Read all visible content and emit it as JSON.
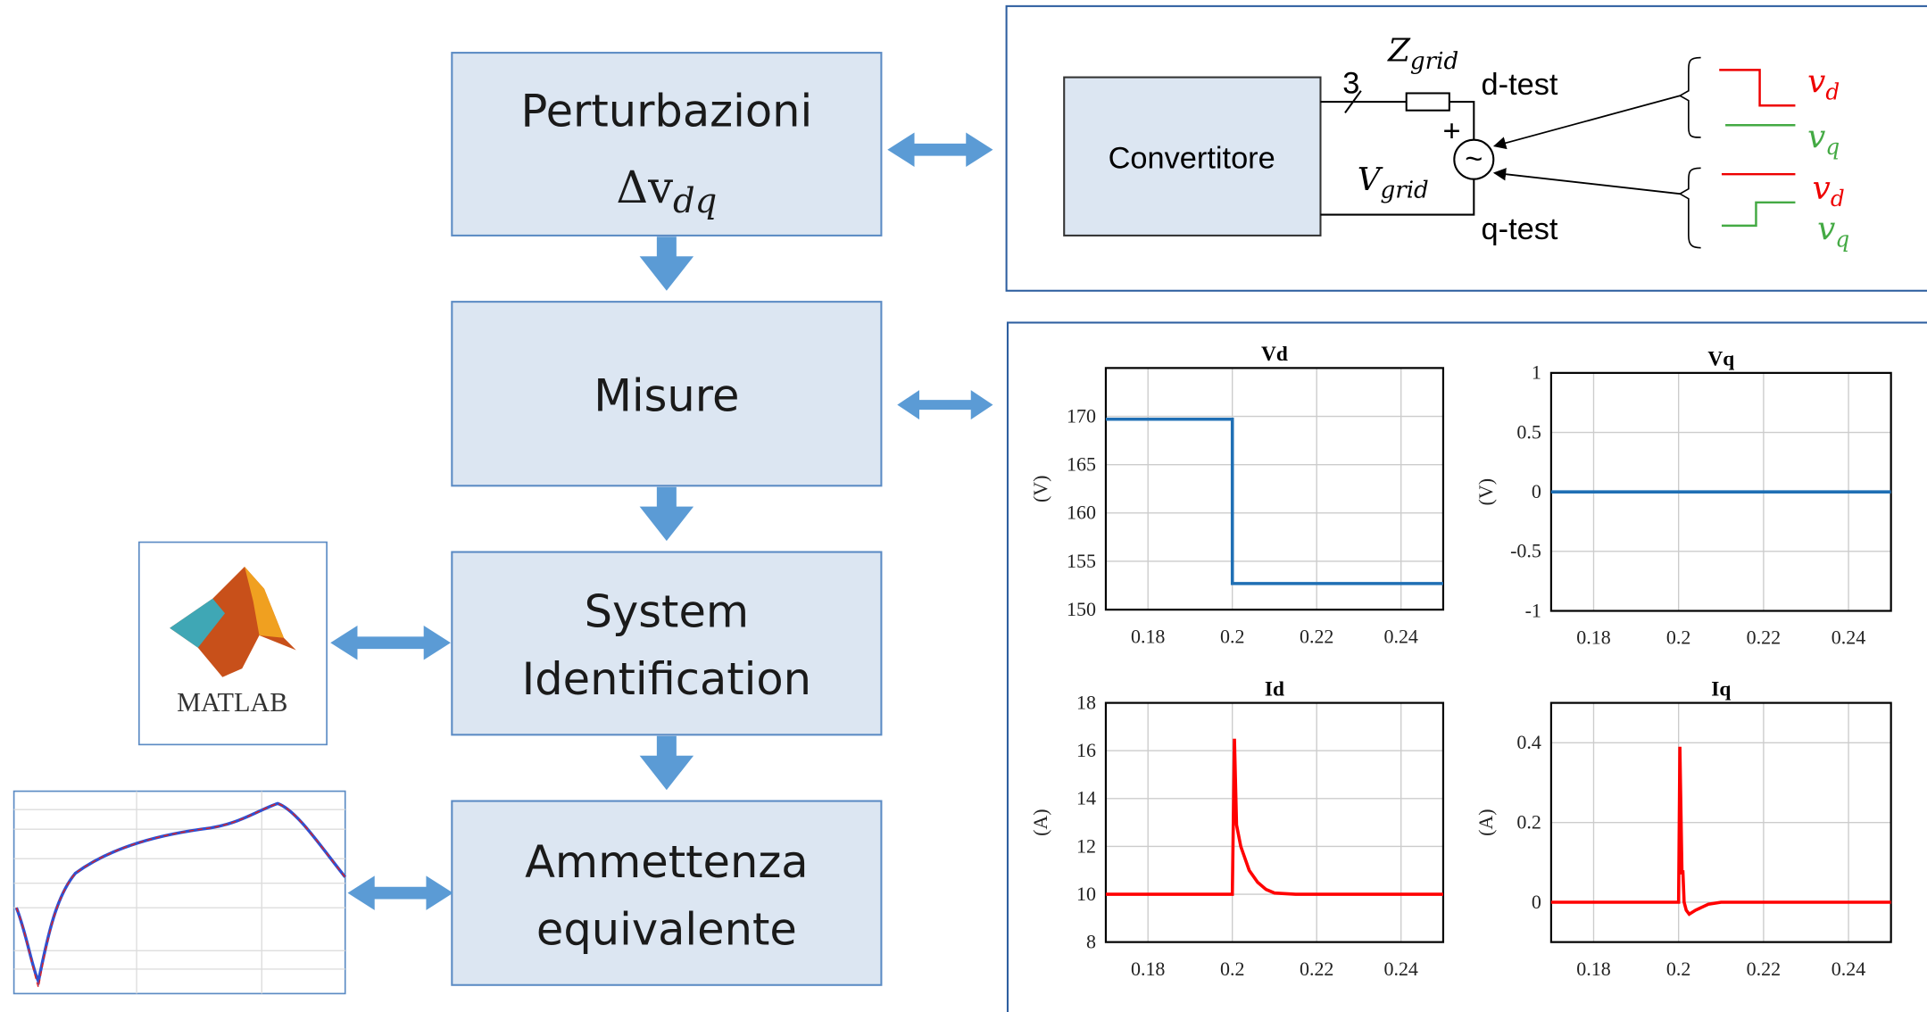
{
  "flow": {
    "boxes": [
      {
        "lines": [
          "Perturbazioni"
        ],
        "math": {
          "symbol": "Δv",
          "sub": "dq"
        }
      },
      {
        "lines": [
          "Misure"
        ]
      },
      {
        "lines": [
          "System",
          "Identification"
        ]
      },
      {
        "lines": [
          "Ammettenza",
          "equivalente"
        ]
      }
    ],
    "matlab_label": "MATLAB"
  },
  "circuit": {
    "converter": "Convertitore",
    "phases": "3",
    "impedance": {
      "symbol": "Z",
      "sub": "grid"
    },
    "voltage": {
      "symbol": "V",
      "sub": "grid"
    },
    "plus": "+",
    "source": "~",
    "d_test": "d-test",
    "q_test": "q-test",
    "d_signals": [
      {
        "symbol": "v",
        "sub": "d"
      },
      {
        "symbol": "v",
        "sub": "q"
      }
    ],
    "q_signals": [
      {
        "symbol": "v",
        "sub": "d"
      },
      {
        "symbol": "v",
        "sub": "q"
      }
    ]
  },
  "chart_data": [
    {
      "type": "line",
      "title": "Vd",
      "ylabel": "(V)",
      "color": "#1f6fb4",
      "x": [
        0.17,
        0.2,
        0.2,
        0.25
      ],
      "values": [
        169.7,
        169.7,
        152.7,
        152.7
      ],
      "xlim": [
        0.17,
        0.25
      ],
      "ylim": [
        150,
        175
      ],
      "xticks": [
        0.18,
        0.2,
        0.22,
        0.24
      ],
      "yticks": [
        150,
        155,
        160,
        165,
        170
      ],
      "grid": true
    },
    {
      "type": "line",
      "title": "Vq",
      "ylabel": "(V)",
      "color": "#1f6fb4",
      "x": [
        0.17,
        0.25
      ],
      "values": [
        0,
        0
      ],
      "xlim": [
        0.17,
        0.25
      ],
      "ylim": [
        -1,
        1
      ],
      "xticks": [
        0.18,
        0.2,
        0.22,
        0.24
      ],
      "yticks": [
        -1,
        -0.5,
        0,
        0.5,
        1
      ],
      "grid": true
    },
    {
      "type": "line",
      "title": "Id",
      "ylabel": "(A)",
      "color": "#ff0000",
      "x": [
        0.17,
        0.2,
        0.2005,
        0.201,
        0.202,
        0.204,
        0.206,
        0.208,
        0.21,
        0.215,
        0.25
      ],
      "values": [
        10,
        10,
        16.5,
        12.9,
        12,
        11,
        10.5,
        10.2,
        10.05,
        10,
        10
      ],
      "xlim": [
        0.17,
        0.25
      ],
      "ylim": [
        8,
        18
      ],
      "xticks": [
        0.18,
        0.2,
        0.22,
        0.24
      ],
      "yticks": [
        8,
        10,
        12,
        14,
        16,
        18
      ],
      "grid": true
    },
    {
      "type": "line",
      "title": "Iq",
      "ylabel": "(A)",
      "color": "#ff0000",
      "x": [
        0.17,
        0.2,
        0.2003,
        0.2008,
        0.201,
        0.2013,
        0.2018,
        0.2025,
        0.204,
        0.207,
        0.21,
        0.25
      ],
      "values": [
        0,
        0,
        0.39,
        0.07,
        0.08,
        0,
        -0.02,
        -0.03,
        -0.02,
        -0.005,
        0,
        0
      ],
      "xlim": [
        0.17,
        0.25
      ],
      "ylim": [
        -0.1,
        0.5
      ],
      "xticks": [
        0.18,
        0.2,
        0.22,
        0.24
      ],
      "yticks": [
        0,
        0.2,
        0.4
      ],
      "grid": true
    }
  ]
}
